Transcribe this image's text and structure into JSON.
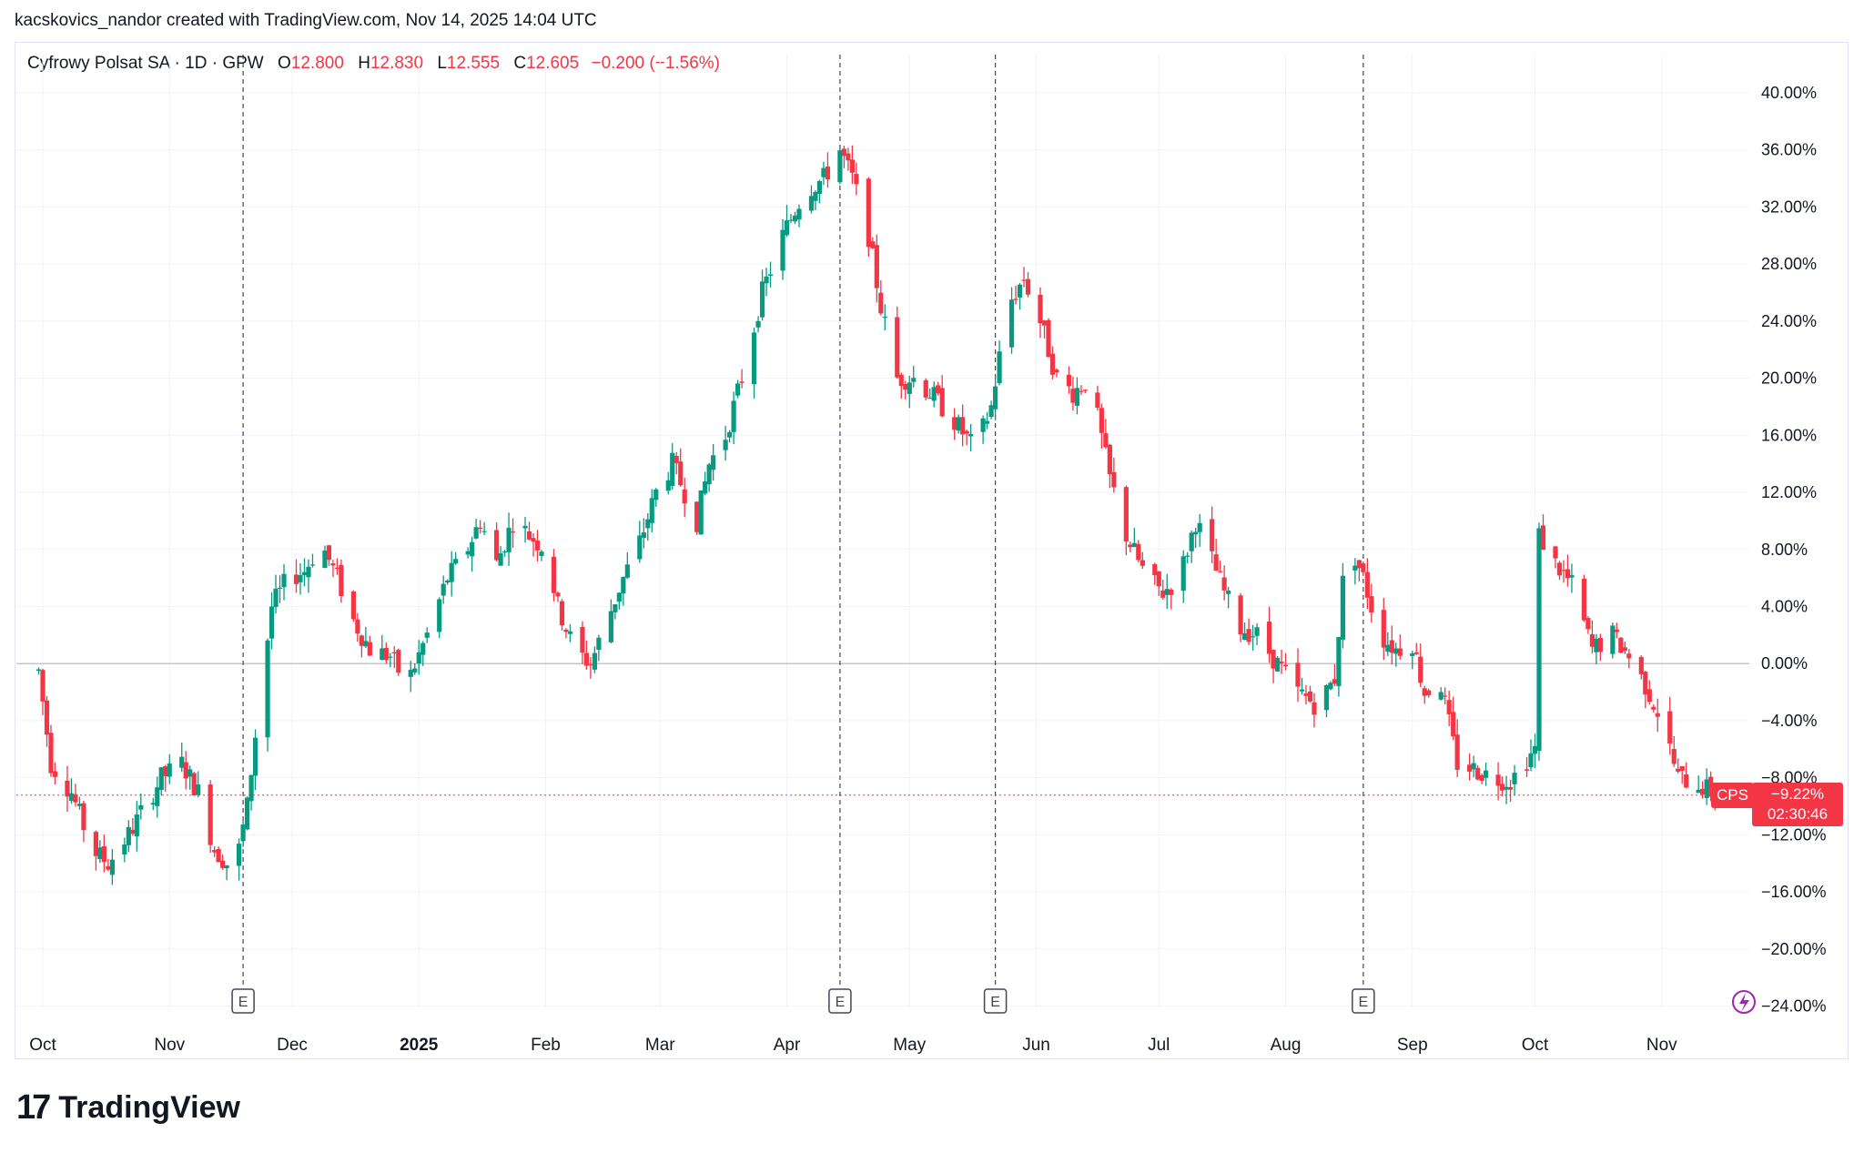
{
  "header": {
    "attribution": "kacskovics_nandor created with TradingView.com, Nov 14, 2025 14:04 UTC"
  },
  "legend": {
    "symbol": "Cyfrowy Polsat SA · 1D · GPW",
    "open_label": "O",
    "open": "12.800",
    "high_label": "H",
    "high": "12.830",
    "low_label": "L",
    "low": "12.555",
    "close_label": "C",
    "close": "12.605",
    "change": "−0.200 (−1.56%)"
  },
  "price_badge": {
    "ticker": "CPS",
    "value": "−9.22%",
    "countdown": "02:30:46"
  },
  "brand": {
    "logo_mark": "17",
    "name": "TradingView"
  },
  "colors": {
    "up": "#089981",
    "down": "#f23645",
    "grid": "#f0f3fa",
    "zero_line": "#b2b5be",
    "event_line": "#434651",
    "text": "#131722",
    "alert_icon": "#9c27b0"
  },
  "icons": {
    "event_marker": "earnings-icon",
    "alert": "lightning-icon"
  },
  "chart_data": {
    "type": "candlestick",
    "y_axis": {
      "unit": "%",
      "scale": "percent",
      "ticks": [
        "40.00%",
        "36.00%",
        "32.00%",
        "28.00%",
        "24.00%",
        "20.00%",
        "16.00%",
        "12.00%",
        "8.00%",
        "4.00%",
        "0.00%",
        "−4.00%",
        "−8.00%",
        "−12.00%",
        "−16.00%",
        "−20.00%",
        "−24.00%"
      ],
      "range": [
        -26,
        42
      ]
    },
    "x_axis": {
      "ticks": [
        "Oct",
        "Nov",
        "Dec",
        "2025",
        "Feb",
        "Mar",
        "Apr",
        "May",
        "Jun",
        "Jul",
        "Aug",
        "Sep",
        "Oct",
        "Nov"
      ],
      "bold_ticks": [
        "2025"
      ],
      "first_date": "2024-10-01",
      "last_date": "2025-11-14"
    },
    "events": [
      {
        "label": "E",
        "date": "2024-11-19"
      },
      {
        "label": "E",
        "date": "2025-04-14"
      },
      {
        "label": "E",
        "date": "2025-05-22"
      },
      {
        "label": "E",
        "date": "2025-08-20"
      }
    ],
    "last_value": -9.22,
    "grid": true,
    "series": [
      {
        "close_path": [
          [
            "2024-09-30",
            -0.5
          ],
          [
            "2024-10-03",
            -7
          ],
          [
            "2024-10-08",
            -9
          ],
          [
            "2024-10-13",
            -13
          ],
          [
            "2024-10-17",
            -14
          ],
          [
            "2024-10-22",
            -12
          ],
          [
            "2024-10-26",
            -10
          ],
          [
            "2024-10-30",
            -8
          ],
          [
            "2024-11-04",
            -7
          ],
          [
            "2024-11-08",
            -9
          ],
          [
            "2024-11-12",
            -13
          ],
          [
            "2024-11-15",
            -14
          ],
          [
            "2024-11-18",
            -13
          ],
          [
            "2024-11-20",
            -10
          ],
          [
            "2024-11-22",
            -5
          ],
          [
            "2024-11-26",
            4
          ],
          [
            "2024-11-30",
            6
          ],
          [
            "2024-12-04",
            6.5
          ],
          [
            "2024-12-08",
            8.5
          ],
          [
            "2024-12-12",
            6
          ],
          [
            "2024-12-16",
            3
          ],
          [
            "2024-12-20",
            1
          ],
          [
            "2024-12-25",
            0.5
          ],
          [
            "2024-12-29",
            -1.5
          ],
          [
            "2025-01-03",
            2
          ],
          [
            "2025-01-08",
            6
          ],
          [
            "2025-01-12",
            7.5
          ],
          [
            "2025-01-16",
            10
          ],
          [
            "2025-01-20",
            7
          ],
          [
            "2025-01-24",
            10
          ],
          [
            "2025-01-28",
            9
          ],
          [
            "2025-02-01",
            8
          ],
          [
            "2025-02-04",
            4
          ],
          [
            "2025-02-08",
            1
          ],
          [
            "2025-02-12",
            0
          ],
          [
            "2025-02-16",
            3
          ],
          [
            "2025-02-20",
            6
          ],
          [
            "2025-02-24",
            8.5
          ],
          [
            "2025-02-28",
            12
          ],
          [
            "2025-03-04",
            14
          ],
          [
            "2025-03-07",
            12
          ],
          [
            "2025-03-10",
            10
          ],
          [
            "2025-03-13",
            14
          ],
          [
            "2025-03-17",
            16
          ],
          [
            "2025-03-21",
            20
          ],
          [
            "2025-03-26",
            26
          ],
          [
            "2025-03-31",
            30
          ],
          [
            "2025-04-05",
            33
          ],
          [
            "2025-04-10",
            34
          ],
          [
            "2025-04-14",
            36
          ],
          [
            "2025-04-17",
            34
          ],
          [
            "2025-04-21",
            30
          ],
          [
            "2025-04-24",
            25
          ],
          [
            "2025-04-28",
            20
          ],
          [
            "2025-05-02",
            20
          ],
          [
            "2025-05-06",
            19
          ],
          [
            "2025-05-12",
            17
          ],
          [
            "2025-05-17",
            15
          ],
          [
            "2025-05-21",
            18
          ],
          [
            "2025-05-25",
            25
          ],
          [
            "2025-05-29",
            27
          ],
          [
            "2025-06-02",
            24
          ],
          [
            "2025-06-06",
            20
          ],
          [
            "2025-06-10",
            19
          ],
          [
            "2025-06-14",
            20
          ],
          [
            "2025-06-19",
            13
          ],
          [
            "2025-06-23",
            9
          ],
          [
            "2025-06-28",
            6
          ],
          [
            "2025-07-02",
            5
          ],
          [
            "2025-07-06",
            6
          ],
          [
            "2025-07-10",
            10
          ],
          [
            "2025-07-13",
            8
          ],
          [
            "2025-07-17",
            5
          ],
          [
            "2025-07-21",
            2.5
          ],
          [
            "2025-07-25",
            2
          ],
          [
            "2025-07-30",
            0
          ],
          [
            "2025-08-04",
            -2
          ],
          [
            "2025-08-09",
            -3
          ],
          [
            "2025-08-13",
            -1
          ],
          [
            "2025-08-16",
            9
          ],
          [
            "2025-08-20",
            6
          ],
          [
            "2025-08-24",
            2
          ],
          [
            "2025-08-28",
            1
          ],
          [
            "2025-09-01",
            1.5
          ],
          [
            "2025-09-04",
            -2
          ],
          [
            "2025-09-08",
            -1.5
          ],
          [
            "2025-09-12",
            -7
          ],
          [
            "2025-09-17",
            -7.5
          ],
          [
            "2025-09-21",
            -8
          ],
          [
            "2025-09-25",
            -8.2
          ]
        ],
        "raw_close_path_note": ""
      }
    ]
  }
}
